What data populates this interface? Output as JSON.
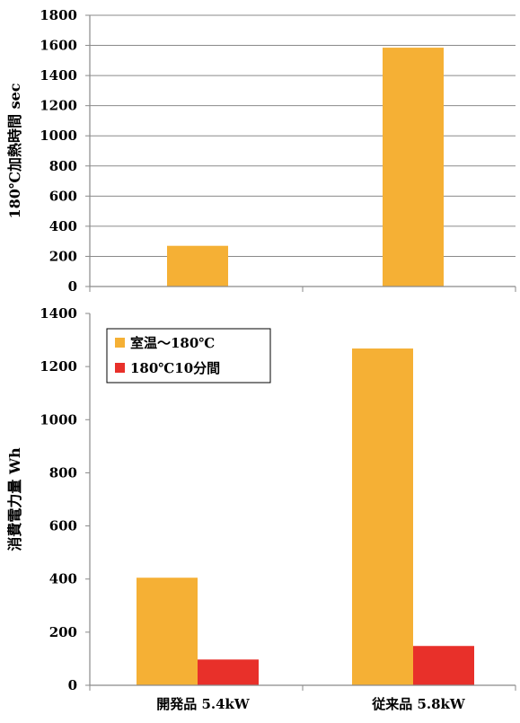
{
  "chart_data": [
    {
      "type": "bar",
      "title": "",
      "xlabel": "",
      "ylabel": "180℃加熱時間 sec",
      "ylim": [
        0,
        1800
      ],
      "yticks": [
        0,
        200,
        400,
        600,
        800,
        1000,
        1200,
        1400,
        1600,
        1800
      ],
      "categories": [
        "開発品 5.4kW",
        "従来品 5.8kW"
      ],
      "grid": true,
      "series": [
        {
          "values": [
            270,
            1585
          ],
          "color": "#f5b035"
        }
      ]
    },
    {
      "type": "bar",
      "title": "",
      "xlabel": "",
      "ylabel": "消費電力量 Wh",
      "ylim": [
        0,
        1400
      ],
      "yticks": [
        0,
        200,
        400,
        600,
        800,
        1000,
        1200,
        1400
      ],
      "categories": [
        "開発品 5.4kW",
        "従来品 5.8kW"
      ],
      "grid": false,
      "legend_position": "top-left",
      "series": [
        {
          "name": "室温～180℃",
          "values": [
            405,
            1268
          ],
          "color": "#f5b035"
        },
        {
          "name": "180℃10分間",
          "values": [
            97,
            148
          ],
          "color": "#e8302a"
        }
      ]
    }
  ]
}
